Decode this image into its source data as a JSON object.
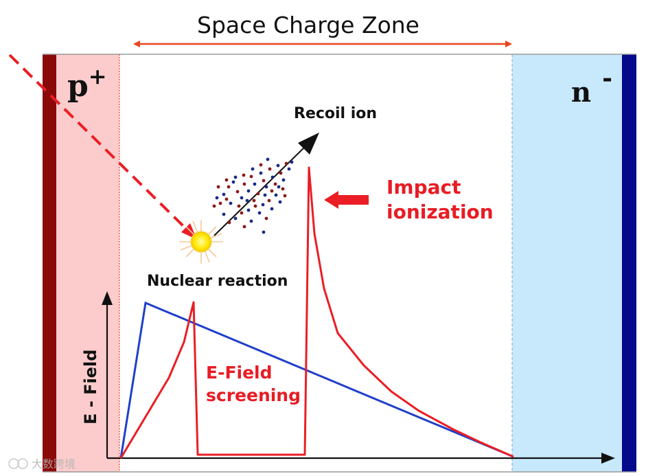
{
  "title": "Space Charge Zone",
  "regions": {
    "p_label": "p",
    "p_superscript": "+",
    "n_label": "n",
    "n_superscript": "-"
  },
  "labels": {
    "recoil_ion": "Recoil ion",
    "nuclear_reaction": "Nuclear reaction",
    "impact_line1": "Impact",
    "impact_line2": "ionization",
    "screening_line1": "E-Field",
    "screening_line2": "screening",
    "axis_y": "E - Field"
  },
  "watermark": {
    "text": "大数跨境"
  },
  "colors": {
    "p_region": "#fccccc",
    "p_contact": "#8a0a0a",
    "n_region": "#c8e8fb",
    "n_contact": "#050a8c",
    "field_line": "#1f3fc8",
    "accent_red": "#e81c24"
  }
}
